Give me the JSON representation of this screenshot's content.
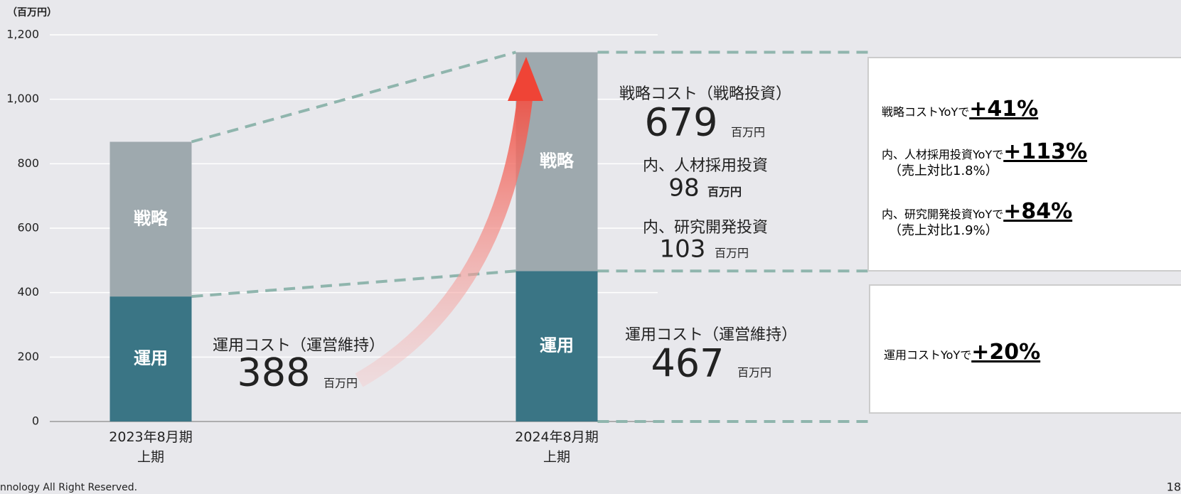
{
  "chart_data": {
    "type": "stacked_bar",
    "y_axis_label": "（百万円）",
    "categories": [
      "2023年8月期\n上期",
      "2024年8月期\n上期"
    ],
    "series": [
      {
        "name": "運用",
        "color": "#3a7585",
        "values": [
          388,
          467
        ]
      },
      {
        "name": "戦略",
        "color": "#9ea9ae",
        "values": [
          480,
          679
        ]
      }
    ],
    "ylim": [
      0,
      1200
    ],
    "yticks": [
      0,
      200,
      400,
      600,
      800,
      {
        "value": 1000,
        "label": "1,000"
      },
      {
        "value": 1200,
        "label": "1,200"
      }
    ],
    "grid": true,
    "annotations": {
      "operation_title": "運用コスト（運営維持）",
      "strategy_title": "戦略コスト（戦略投資）",
      "hiring_title": "内、人材採用投資",
      "hiring_value": 98,
      "rnd_title": "内、研究開発投資",
      "rnd_value": 103,
      "unit": "百万円"
    }
  },
  "callouts": [
    {
      "text": "戦略コストYoYで",
      "highlight": "+41%"
    },
    {
      "text": "内、人材採用投資YoYで",
      "highlight": "+113%",
      "note": "（売上対比1.8%）"
    },
    {
      "text": "内、研究開発投資YoYで",
      "highlight": "+84%",
      "note": "（売上対比1.9%）"
    },
    {
      "text": "運用コストYoYで",
      "highlight": "+20%"
    }
  ],
  "footer": "nnology All Right Reserved.",
  "page_number": "18"
}
